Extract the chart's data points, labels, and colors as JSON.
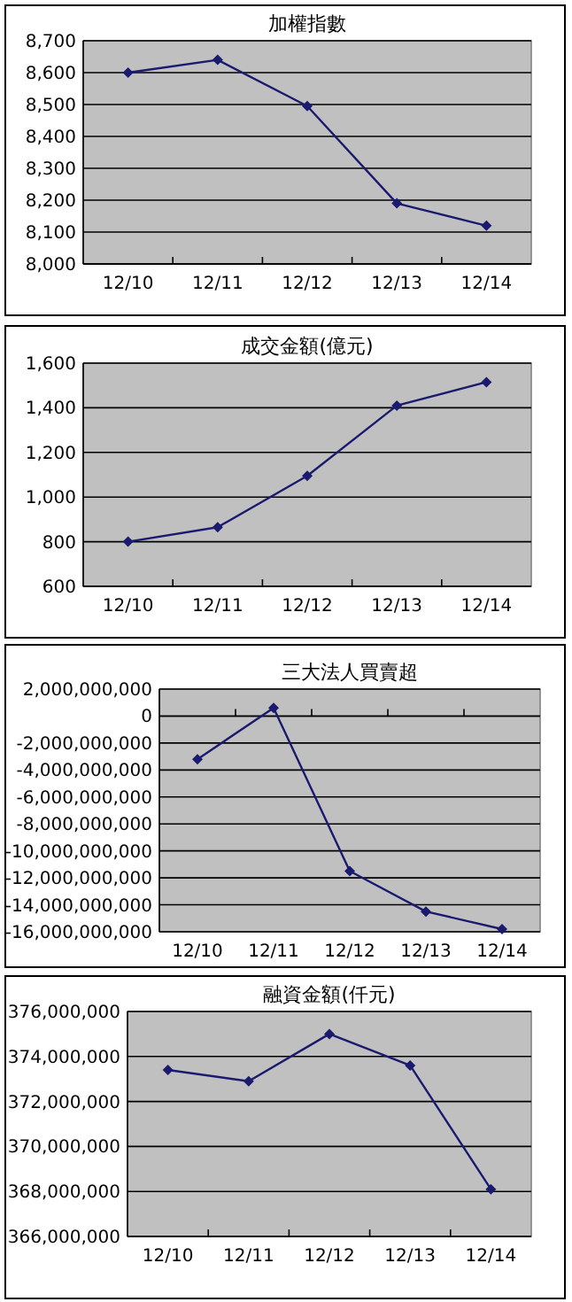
{
  "chart_data": [
    {
      "type": "line",
      "title": "加權指數",
      "categories": [
        "12/10",
        "12/11",
        "12/12",
        "12/13",
        "12/14"
      ],
      "series": [
        {
          "color": "#1a1a6e",
          "values": [
            8600,
            8640,
            8495,
            8190,
            8120
          ]
        }
      ],
      "ylim": [
        8000,
        8700
      ],
      "yticks": [
        {
          "value": 8000,
          "label": "8,000"
        },
        {
          "value": 8100,
          "label": "8,100"
        },
        {
          "value": 8200,
          "label": "8,200"
        },
        {
          "value": 8300,
          "label": "8,300"
        },
        {
          "value": 8400,
          "label": "8,400"
        },
        {
          "value": 8500,
          "label": "8,500"
        },
        {
          "value": 8600,
          "label": "8,600"
        },
        {
          "value": 8700,
          "label": "8,700"
        }
      ],
      "grid": "y",
      "marker": "diamond",
      "line_style": "solid"
    },
    {
      "type": "line",
      "title": "成交金額(億元)",
      "categories": [
        "12/10",
        "12/11",
        "12/12",
        "12/13",
        "12/14"
      ],
      "series": [
        {
          "color": "#1a1a6e",
          "values": [
            800,
            865,
            1095,
            1410,
            1515
          ]
        }
      ],
      "ylim": [
        600,
        1600
      ],
      "yticks": [
        600,
        800,
        {
          "value": 1000,
          "label": "1,000"
        },
        {
          "value": 1200,
          "label": "1,200"
        },
        {
          "value": 1400,
          "label": "1,400"
        },
        {
          "value": 1600,
          "label": "1,600"
        }
      ],
      "grid": "y",
      "marker": "diamond",
      "line_style": "solid"
    },
    {
      "type": "line",
      "title": "三大法人買賣超",
      "categories": [
        "12/10",
        "12/11",
        "12/12",
        "12/13",
        "12/14"
      ],
      "series": [
        {
          "color": "#1a1a6e",
          "values": [
            -3200000000,
            600000000,
            -11500000000,
            -14500000000,
            -15800000000
          ]
        }
      ],
      "ylim": [
        -16000000000,
        2000000000
      ],
      "yticks": [
        {
          "value": -16000000000,
          "label": "-16,000,000,000"
        },
        {
          "value": -14000000000,
          "label": "-14,000,000,000"
        },
        {
          "value": -12000000000,
          "label": "-12,000,000,000"
        },
        {
          "value": -10000000000,
          "label": "-10,000,000,000"
        },
        {
          "value": -8000000000,
          "label": "-8,000,000,000"
        },
        {
          "value": -6000000000,
          "label": "-6,000,000,000"
        },
        {
          "value": -4000000000,
          "label": "-4,000,000,000"
        },
        {
          "value": -2000000000,
          "label": "-2,000,000,000"
        },
        0,
        {
          "value": 2000000000,
          "label": "2,000,000,000"
        }
      ],
      "grid": "y",
      "marker": "diamond",
      "line_style": "solid"
    },
    {
      "type": "line",
      "title": "融資金額(仟元)",
      "categories": [
        "12/10",
        "12/11",
        "12/12",
        "12/13",
        "12/14"
      ],
      "series": [
        {
          "color": "#1a1a6e",
          "values": [
            373400000,
            372900000,
            375000000,
            373600000,
            368100000
          ]
        }
      ],
      "ylim": [
        366000000,
        376000000
      ],
      "yticks": [
        {
          "value": 366000000,
          "label": "366,000,000"
        },
        {
          "value": 368000000,
          "label": "368,000,000"
        },
        {
          "value": 370000000,
          "label": "370,000,000"
        },
        {
          "value": 372000000,
          "label": "372,000,000"
        },
        {
          "value": 374000000,
          "label": "374,000,000"
        },
        {
          "value": 376000000,
          "label": "376,000,000"
        }
      ],
      "grid": "y",
      "marker": "diamond",
      "line_style": "solid"
    }
  ]
}
